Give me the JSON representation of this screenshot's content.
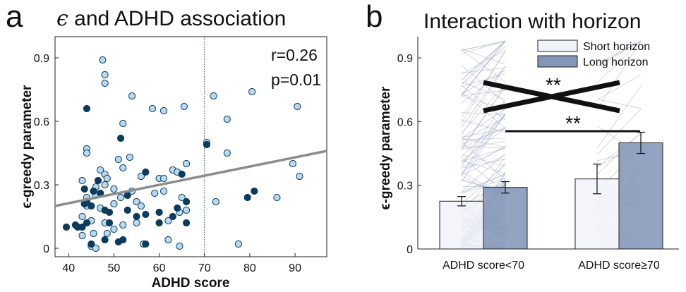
{
  "panels": {
    "a": {
      "letter": "a",
      "title_symbol": "ϵ",
      "title_rest": " and ADHD association",
      "stats": {
        "r": "r=0.26",
        "p": "p=0.01"
      }
    },
    "b": {
      "letter": "b",
      "title": "Interaction with horizon",
      "significance": [
        "**",
        "**"
      ]
    }
  },
  "colors": {
    "light_point": "#b8d8f2",
    "dark_point": "#0b3c5d",
    "regression": "#8c8c8c",
    "short_bar": "#f0f3fa",
    "long_bar": "#8395b8",
    "subject_lines": "#9aa6c2"
  },
  "chart_data": [
    {
      "type": "scatter",
      "title": "ϵ and ADHD association",
      "xlabel": "ADHD score",
      "ylabel": "ϵ-greedy parameter",
      "xlim": [
        37,
        97
      ],
      "ylim": [
        -0.04,
        1.0
      ],
      "xticks": [
        40,
        50,
        60,
        70,
        80,
        90
      ],
      "yticks": [
        0,
        0.3,
        0.6,
        0.9
      ],
      "ytick_labels": [
        "0",
        "0.3",
        "0.6",
        "0.9"
      ],
      "threshold_x": 70,
      "regression": {
        "x": [
          37,
          97
        ],
        "y": [
          0.2,
          0.46
        ]
      },
      "annotations": [
        "r=0.26",
        "p=0.01"
      ],
      "grid": false,
      "series": [
        {
          "name": "",
          "color": "#b8d8f2",
          "points": [
            [
              47.5,
              0.89
            ],
            [
              48,
              0.82
            ],
            [
              48,
              0.78
            ],
            [
              54,
              0.72
            ],
            [
              52,
              0.59
            ],
            [
              58.5,
              0.66
            ],
            [
              61,
              0.65
            ],
            [
              65.5,
              0.67
            ],
            [
              72,
              0.72
            ],
            [
              75,
              0.61
            ],
            [
              80.5,
              0.74
            ],
            [
              90.5,
              0.67
            ],
            [
              75,
              0.45
            ],
            [
              44,
              0.47
            ],
            [
              44,
              0.45
            ],
            [
              51,
              0.42
            ],
            [
              52,
              0.38
            ],
            [
              53.5,
              0.43
            ],
            [
              48,
              0.35
            ],
            [
              47,
              0.37
            ],
            [
              48.5,
              0.33
            ],
            [
              43,
              0.32
            ],
            [
              56,
              0.34
            ],
            [
              60,
              0.33
            ],
            [
              61,
              0.33
            ],
            [
              63,
              0.37
            ],
            [
              64,
              0.36
            ],
            [
              66,
              0.4
            ],
            [
              70.5,
              0.5
            ],
            [
              89.5,
              0.4
            ],
            [
              91,
              0.34
            ],
            [
              48,
              0.3
            ],
            [
              46,
              0.29
            ],
            [
              50,
              0.28
            ],
            [
              54,
              0.27
            ],
            [
              59,
              0.26
            ],
            [
              61,
              0.27
            ],
            [
              44,
              0.24
            ],
            [
              46,
              0.25
            ],
            [
              51.5,
              0.24
            ],
            [
              55,
              0.22
            ],
            [
              65,
              0.24
            ],
            [
              44,
              0.2
            ],
            [
              47,
              0.19
            ],
            [
              50,
              0.21
            ],
            [
              56,
              0.2
            ],
            [
              43,
              0.15
            ],
            [
              45,
              0.13
            ],
            [
              48,
              0.12
            ],
            [
              52,
              0.11
            ],
            [
              55,
              0.12
            ],
            [
              62,
              0.13
            ],
            [
              64.5,
              0.17
            ],
            [
              66,
              0.18
            ],
            [
              50,
              0.09
            ],
            [
              43,
              0.06
            ],
            [
              45.5,
              0.07
            ],
            [
              48.5,
              0.07
            ],
            [
              62,
              0.04
            ],
            [
              56.5,
              0.02
            ],
            [
              64.5,
              0.01
            ],
            [
              45,
              0.01
            ],
            [
              46,
              0.0
            ],
            [
              77.5,
              0.02
            ],
            [
              86,
              0.24
            ],
            [
              72.5,
              0.22
            ]
          ]
        },
        {
          "name": "",
          "color": "#0b3c5d",
          "points": [
            [
              44,
              0.66
            ],
            [
              51.5,
              0.52
            ],
            [
              70.5,
              0.49
            ],
            [
              57,
              0.36
            ],
            [
              65,
              0.35
            ],
            [
              46.5,
              0.32
            ],
            [
              43.5,
              0.28
            ],
            [
              45.5,
              0.27
            ],
            [
              47,
              0.26
            ],
            [
              53,
              0.25
            ],
            [
              44,
              0.22
            ],
            [
              45,
              0.2
            ],
            [
              43.5,
              0.21
            ],
            [
              48,
              0.18
            ],
            [
              49,
              0.17
            ],
            [
              53,
              0.18
            ],
            [
              55,
              0.15
            ],
            [
              57,
              0.16
            ],
            [
              60,
              0.17
            ],
            [
              64,
              0.19
            ],
            [
              66,
              0.22
            ],
            [
              60,
              0.12
            ],
            [
              63,
              0.15
            ],
            [
              49,
              0.12
            ],
            [
              42,
              0.1
            ],
            [
              43,
              0.1
            ],
            [
              44,
              0.12
            ],
            [
              39.5,
              0.1
            ],
            [
              41.5,
              0.11
            ],
            [
              52,
              0.04
            ],
            [
              51,
              0.03
            ],
            [
              48,
              0.04
            ],
            [
              45,
              0.02
            ],
            [
              57,
              0.02
            ],
            [
              66,
              0.12
            ],
            [
              79.5,
              0.24
            ],
            [
              81,
              0.27
            ]
          ]
        }
      ]
    },
    {
      "type": "bar",
      "title": "Interaction with horizon",
      "ylabel": "ϵ-greedy parameter",
      "categories": [
        "ADHD score<70",
        "ADHD score≥70"
      ],
      "ylim": [
        0,
        1.0
      ],
      "yticks": [
        0,
        0.3,
        0.6,
        0.9
      ],
      "ytick_labels": [
        "0",
        "0.3",
        "0.6",
        "0.9"
      ],
      "legend": "top-right",
      "grid": false,
      "series": [
        {
          "name": "Short horizon",
          "color": "#f0f3fa",
          "values": [
            0.225,
            0.33
          ],
          "error": [
            0.022,
            0.07
          ]
        },
        {
          "name": "Long horizon",
          "color": "#8395b8",
          "values": [
            0.29,
            0.5
          ],
          "error": [
            0.027,
            0.05
          ]
        }
      ],
      "annotations": [
        "**",
        "**"
      ]
    }
  ]
}
